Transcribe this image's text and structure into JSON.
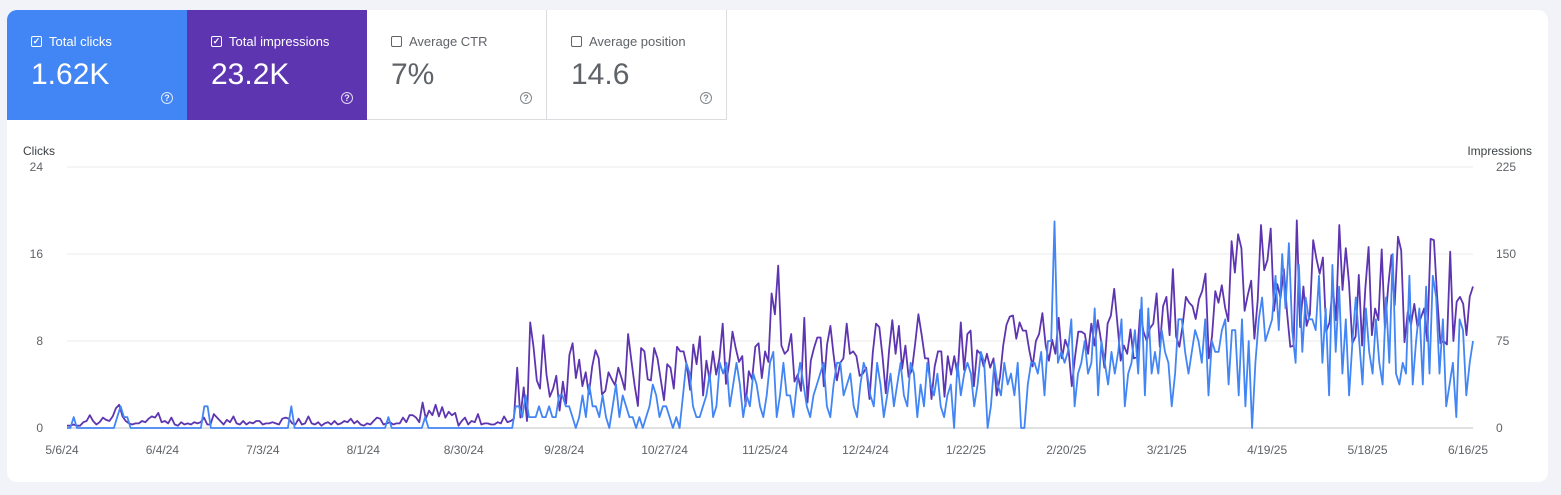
{
  "metrics": [
    {
      "label": "Total clicks",
      "value": "1.62K",
      "checked": true,
      "color": "#4285f4"
    },
    {
      "label": "Total impressions",
      "value": "23.2K",
      "checked": true,
      "color": "#5e35b1"
    },
    {
      "label": "Average CTR",
      "value": "7%",
      "checked": false
    },
    {
      "label": "Average position",
      "value": "14.6",
      "checked": false
    }
  ],
  "help_glyph": "?",
  "chart_data": {
    "type": "line",
    "ylabel": "Clicks",
    "y2label": "Impressions",
    "ylim": [
      0,
      24
    ],
    "y2lim": [
      0,
      225
    ],
    "yticks": [
      0,
      8,
      16,
      24
    ],
    "y2ticks": [
      0,
      75,
      150,
      225
    ],
    "x_tick_labels": [
      "5/6/24",
      "6/4/24",
      "7/3/24",
      "8/1/24",
      "8/30/24",
      "9/28/24",
      "10/27/24",
      "11/25/24",
      "12/24/24",
      "1/22/25",
      "2/20/25",
      "3/21/25",
      "4/19/25",
      "5/18/25",
      "6/16/25"
    ],
    "grid": true,
    "x_start": "2024-05-06",
    "x_end": "2025-06-16",
    "series": [
      {
        "name": "Total clicks",
        "axis": "left",
        "color": "#4285f4",
        "values": [
          0,
          0,
          1,
          0,
          0,
          0,
          0,
          0,
          0,
          0,
          0,
          0,
          0,
          0,
          0,
          1,
          2,
          1,
          1,
          0,
          0,
          0,
          0,
          0,
          0,
          0,
          0,
          0,
          0,
          0,
          0,
          0,
          0,
          0,
          0,
          0,
          0,
          0,
          0,
          0,
          0,
          2,
          2,
          0,
          0,
          0,
          0,
          0,
          0,
          0,
          0,
          0,
          0,
          0,
          0,
          0,
          0,
          0,
          0,
          0,
          0,
          0,
          0,
          0,
          0,
          0,
          0,
          2,
          0,
          0,
          0,
          0,
          0,
          0,
          0,
          0,
          0,
          0,
          0,
          0,
          0,
          0,
          0,
          0,
          0,
          0,
          0,
          0,
          0,
          0,
          0,
          0,
          0,
          0,
          0,
          0,
          1,
          0,
          0,
          0,
          0,
          0,
          0,
          0,
          0,
          0,
          0,
          1,
          0,
          0,
          0,
          0,
          0,
          0,
          0,
          0,
          0,
          0,
          0,
          0,
          0,
          0,
          0,
          0,
          0,
          0,
          0,
          0,
          0,
          0,
          0,
          0,
          0,
          0,
          2,
          2,
          1,
          3,
          1,
          1,
          1,
          2,
          1,
          1,
          2,
          1,
          1,
          3,
          3,
          2,
          2,
          1,
          0,
          1,
          3,
          1,
          4,
          2,
          2,
          1,
          3,
          1,
          0,
          2,
          4,
          1,
          3,
          2,
          1,
          1,
          0,
          1,
          0,
          1,
          2,
          4,
          3,
          1,
          2,
          2,
          1,
          0,
          1,
          0,
          3,
          6,
          5,
          2,
          1,
          1,
          2,
          3,
          5,
          1,
          2,
          6,
          5,
          6,
          2,
          4,
          6,
          4,
          1,
          3,
          2,
          5,
          4,
          2,
          1,
          3,
          6,
          7,
          1,
          3,
          6,
          3,
          3,
          1,
          4,
          6,
          4,
          2,
          1,
          3,
          4,
          5,
          6,
          2,
          1,
          4,
          6,
          6,
          3,
          4,
          5,
          2,
          1,
          4,
          6,
          5,
          3,
          2,
          6,
          4,
          1,
          3,
          5,
          2,
          4,
          6,
          3,
          2,
          6,
          5,
          1,
          4,
          2,
          6,
          4,
          3,
          5,
          2,
          1,
          3,
          4,
          0,
          6,
          3,
          5,
          6,
          5,
          2,
          4,
          7,
          6,
          0,
          2,
          6,
          4,
          3,
          6,
          4,
          5,
          3,
          6,
          0,
          0,
          4,
          6,
          6,
          5,
          7,
          3,
          8,
          8,
          19,
          6,
          7,
          6,
          7,
          10,
          2,
          5,
          6,
          8,
          5,
          6,
          11,
          3,
          8,
          6,
          4,
          7,
          5,
          7,
          10,
          2,
          5,
          6,
          9,
          5,
          12,
          3,
          11,
          5,
          7,
          5,
          9,
          7,
          6,
          2,
          5,
          10,
          10,
          7,
          5,
          7,
          9,
          8,
          6,
          10,
          3,
          8,
          7,
          7,
          9,
          10,
          4,
          9,
          9,
          3,
          10,
          2,
          8,
          0,
          6,
          10,
          12,
          8,
          9,
          10,
          14,
          9,
          16,
          11,
          17,
          9,
          6,
          15,
          7,
          12,
          10,
          10,
          9,
          14,
          6,
          11,
          3,
          15,
          7,
          13,
          5,
          10,
          3,
          8,
          12,
          8,
          4,
          11,
          7,
          5,
          10,
          6,
          4,
          12,
          6,
          16,
          5,
          4,
          6,
          5,
          14,
          4,
          8,
          11,
          4,
          13,
          5,
          14,
          12,
          5,
          10,
          2,
          4,
          6,
          1,
          10,
          9,
          3,
          6,
          8
        ]
      },
      {
        "name": "Total impressions",
        "axis": "right",
        "color": "#5e35b1",
        "values": [
          2,
          2,
          3,
          2,
          2,
          5,
          6,
          11,
          6,
          3,
          5,
          9,
          7,
          6,
          10,
          17,
          20,
          10,
          6,
          4,
          3,
          4,
          4,
          6,
          5,
          8,
          10,
          9,
          13,
          5,
          6,
          4,
          9,
          3,
          2,
          5,
          3,
          4,
          3,
          5,
          4,
          5,
          9,
          3,
          3,
          12,
          9,
          6,
          3,
          7,
          5,
          10,
          4,
          3,
          6,
          3,
          5,
          4,
          6,
          6,
          3,
          4,
          4,
          5,
          4,
          3,
          8,
          9,
          8,
          4,
          3,
          8,
          3,
          4,
          10,
          4,
          3,
          5,
          2,
          4,
          5,
          3,
          6,
          3,
          4,
          6,
          5,
          8,
          4,
          6,
          3,
          2,
          4,
          3,
          6,
          9,
          8,
          3,
          4,
          5,
          3,
          4,
          4,
          9,
          5,
          11,
          11,
          9,
          5,
          22,
          8,
          15,
          11,
          20,
          10,
          18,
          9,
          14,
          11,
          13,
          2,
          6,
          9,
          3,
          6,
          5,
          12,
          3,
          4,
          4,
          3,
          3,
          5,
          4,
          10,
          5,
          6,
          8,
          52,
          9,
          35,
          6,
          91,
          70,
          41,
          34,
          80,
          46,
          27,
          34,
          45,
          15,
          40,
          21,
          63,
          73,
          43,
          59,
          36,
          48,
          29,
          53,
          67,
          60,
          29,
          32,
          48,
          42,
          37,
          52,
          43,
          33,
          81,
          58,
          37,
          19,
          69,
          66,
          42,
          41,
          69,
          60,
          42,
          24,
          55,
          52,
          34,
          70,
          66,
          66,
          54,
          33,
          72,
          55,
          79,
          28,
          58,
          41,
          66,
          46,
          60,
          90,
          38,
          56,
          83,
          69,
          57,
          62,
          19,
          49,
          42,
          70,
          73,
          43,
          66,
          57,
          116,
          98,
          140,
          71,
          64,
          67,
          81,
          40,
          46,
          32,
          95,
          22,
          58,
          69,
          78,
          78,
          36,
          72,
          88,
          63,
          41,
          56,
          60,
          90,
          64,
          66,
          62,
          45,
          47,
          52,
          25,
          65,
          90,
          87,
          62,
          30,
          67,
          93,
          64,
          88,
          51,
          71,
          44,
          50,
          73,
          98,
          80,
          60,
          60,
          25,
          53,
          66,
          66,
          27,
          62,
          46,
          62,
          45,
          91,
          50,
          81,
          84,
          36,
          67,
          64,
          53,
          64,
          52,
          60,
          28,
          44,
          71,
          89,
          96,
          97,
          77,
          91,
          84,
          84,
          67,
          53,
          75,
          81,
          99,
          71,
          58,
          76,
          64,
          95,
          60,
          76,
          68,
          36,
          61,
          83,
          83,
          81,
          64,
          90,
          71,
          93,
          75,
          52,
          90,
          97,
          120,
          90,
          58,
          71,
          64,
          85,
          60,
          61,
          102,
          83,
          75,
          86,
          90,
          116,
          70,
          105,
          113,
          80,
          137,
          79,
          70,
          89,
          113,
          108,
          105,
          94,
          111,
          118,
          133,
          60,
          79,
          118,
          108,
          123,
          104,
          92,
          161,
          134,
          167,
          155,
          101,
          115,
          127,
          77,
          110,
          175,
          136,
          145,
          172,
          101,
          124,
          112,
          137,
          99,
          70,
          71,
          179,
          87,
          122,
          88,
          98,
          162,
          146,
          133,
          147,
          83,
          91,
          122,
          93,
          175,
          119,
          155,
          125,
          73,
          79,
          132,
          71,
          120,
          156,
          80,
          103,
          93,
          154,
          86,
          122,
          149,
          106,
          165,
          153,
          74,
          100,
          89,
          107,
          87,
          95,
          103,
          75,
          163,
          162,
          114,
          73,
          75,
          72,
          152,
          75,
          109,
          113,
          107,
          80,
          113,
          122
        ]
      }
    ]
  }
}
